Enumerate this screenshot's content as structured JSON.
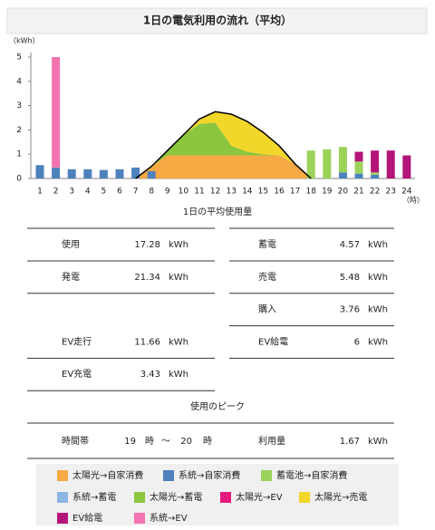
{
  "header": {
    "title": "1日の電気利用の流れ（平均）"
  },
  "chart_data": {
    "type": "stacked-flow",
    "y_unit": "（kWh）",
    "x_unit": "（時）",
    "categories": [
      "1",
      "2",
      "3",
      "4",
      "5",
      "6",
      "7",
      "8",
      "9",
      "10",
      "11",
      "12",
      "13",
      "14",
      "15",
      "16",
      "17",
      "18",
      "19",
      "20",
      "21",
      "22",
      "23",
      "24"
    ],
    "ylim": [
      0,
      5
    ],
    "yticks": [
      0,
      1,
      2,
      3,
      4,
      5
    ],
    "grid": false,
    "series": [
      {
        "name": "太陽光→自家消費",
        "color": "#f7a944",
        "type": "area",
        "values": [
          null,
          null,
          null,
          null,
          null,
          null,
          0,
          0.5,
          0.95,
          0.95,
          0.95,
          0.95,
          0.95,
          0.95,
          0.95,
          0.95,
          0.6,
          0,
          null,
          null,
          null,
          null,
          null,
          null
        ]
      },
      {
        "name": "系統→自家消費",
        "color": "#4f81bd",
        "type": "bar",
        "values": [
          0.55,
          0.45,
          0.38,
          0.38,
          0.35,
          0.38,
          0.45,
          0.3,
          null,
          null,
          null,
          null,
          null,
          null,
          null,
          null,
          null,
          null,
          null,
          0.25,
          0.2,
          0.15,
          null,
          null
        ]
      },
      {
        "name": "蓄電池→自家消費",
        "color": "#9bd35a",
        "type": "bar",
        "values": [
          null,
          null,
          null,
          null,
          null,
          null,
          null,
          null,
          null,
          null,
          null,
          null,
          null,
          null,
          null,
          null,
          null,
          1.15,
          1.2,
          1.05,
          0.5,
          0.1,
          null,
          null
        ]
      },
      {
        "name": "系統→蓄電",
        "color": "#8db4e2",
        "type": "bar",
        "values": [
          null,
          null,
          null,
          null,
          null,
          null,
          null,
          null,
          null,
          null,
          null,
          null,
          null,
          null,
          null,
          null,
          null,
          null,
          null,
          null,
          null,
          null,
          null,
          null
        ]
      },
      {
        "name": "太陽光→蓄電",
        "color": "#8cc63e",
        "type": "area",
        "values": [
          null,
          null,
          null,
          null,
          null,
          null,
          0,
          0,
          0.2,
          0.85,
          1.3,
          1.35,
          0.4,
          0.15,
          0.05,
          0,
          0,
          0,
          null,
          null,
          null,
          null,
          null,
          null
        ]
      },
      {
        "name": "太陽光→EV",
        "color": "#e6197e",
        "type": "bar",
        "values": [
          null,
          null,
          null,
          null,
          null,
          null,
          null,
          null,
          null,
          null,
          null,
          null,
          null,
          null,
          null,
          null,
          null,
          null,
          null,
          null,
          null,
          null,
          null,
          null
        ]
      },
      {
        "name": "太陽光→売電",
        "color": "#f2d629",
        "type": "area",
        "values": [
          null,
          null,
          null,
          null,
          null,
          null,
          0,
          0,
          0,
          0,
          0.2,
          0.45,
          1.3,
          1.25,
          0.9,
          0.4,
          0,
          0,
          null,
          null,
          null,
          null,
          null,
          null
        ]
      },
      {
        "name": "EV給電",
        "color": "#b3147a",
        "type": "bar",
        "values": [
          null,
          null,
          null,
          null,
          null,
          null,
          null,
          null,
          null,
          null,
          null,
          null,
          null,
          null,
          null,
          null,
          null,
          null,
          null,
          null,
          0.4,
          0.9,
          1.15,
          0.95
        ]
      },
      {
        "name": "系統→EV",
        "color": "#f472b0",
        "type": "bar",
        "values": [
          null,
          4.55,
          null,
          null,
          null,
          null,
          null,
          null,
          null,
          null,
          null,
          null,
          null,
          null,
          null,
          null,
          null,
          null,
          null,
          null,
          null,
          null,
          null,
          null
        ]
      },
      {
        "color": "#000000",
        "type": "line",
        "values": [
          null,
          null,
          null,
          null,
          null,
          null,
          0,
          0.5,
          1.15,
          1.8,
          2.45,
          2.75,
          2.65,
          2.35,
          1.9,
          1.35,
          0.6,
          0,
          null,
          null,
          null,
          null,
          null,
          null
        ]
      }
    ]
  },
  "usage": {
    "title": "1日の平均使用量",
    "rows": [
      [
        {
          "label": "使用",
          "value": 17.28,
          "unit": "kWh"
        },
        {
          "label": "蓄電",
          "value": 4.57,
          "unit": "kWh"
        }
      ],
      [
        {
          "label": "発電",
          "value": 21.34,
          "unit": "kWh"
        },
        {
          "label": "売電",
          "value": 5.48,
          "unit": "kWh"
        }
      ],
      [
        null,
        {
          "label": "購入",
          "value": 3.76,
          "unit": "kWh"
        }
      ],
      [
        {
          "label": "EV走行",
          "value": 11.66,
          "unit": "kWh"
        },
        {
          "label": "EV給電",
          "value": 6,
          "unit": "kWh"
        }
      ],
      [
        {
          "label": "EV充電",
          "value": 3.43,
          "unit": "kWh"
        },
        null
      ]
    ]
  },
  "peak": {
    "title": "使用のピーク",
    "label": "時間帯",
    "start": 19,
    "start_unit": "時",
    "separator": "〜",
    "end": 20,
    "end_unit": "時",
    "amount_label": "利用量",
    "amount": 1.67,
    "amount_unit": "kWh"
  }
}
